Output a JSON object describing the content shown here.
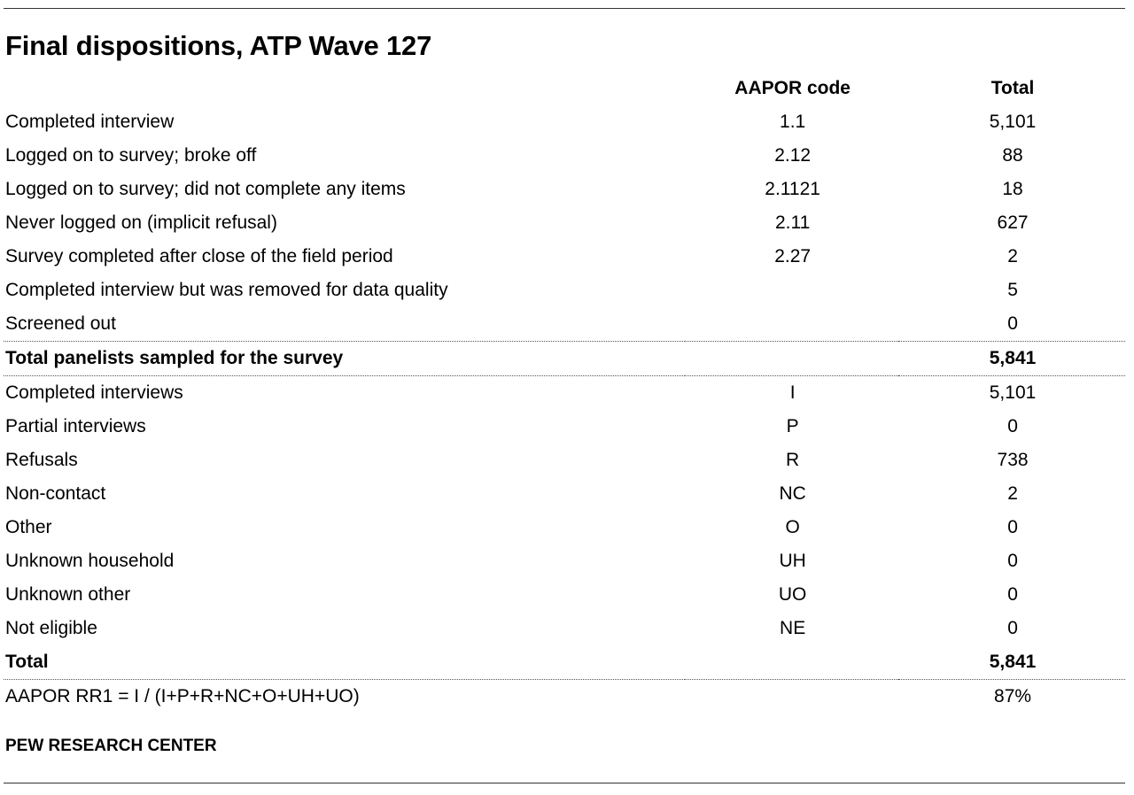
{
  "title": "Final dispositions, ATP Wave 127",
  "table": {
    "headers": {
      "label": "",
      "code": "AAPOR code",
      "total": "Total"
    },
    "rows": [
      {
        "label": "Completed interview",
        "code": "1.1",
        "total": "5,101"
      },
      {
        "label": "Logged on to survey; broke off",
        "code": "2.12",
        "total": "88"
      },
      {
        "label": "Logged on to survey; did not complete any items",
        "code": "2.1121",
        "total": "18"
      },
      {
        "label": "Never logged on (implicit refusal)",
        "code": "2.11",
        "total": "627"
      },
      {
        "label": "Survey completed after close of the field period",
        "code": "2.27",
        "total": "2"
      },
      {
        "label": "Completed interview but was removed for data quality",
        "code": "",
        "total": "5"
      },
      {
        "label": "Screened out",
        "code": "",
        "total": "0"
      },
      {
        "label": "Total panelists sampled for the survey",
        "code": "",
        "total": "5,841"
      },
      {
        "label": "Completed interviews",
        "code": "I",
        "total": "5,101"
      },
      {
        "label": "Partial interviews",
        "code": "P",
        "total": "0"
      },
      {
        "label": "Refusals",
        "code": "R",
        "total": "738"
      },
      {
        "label": "Non-contact",
        "code": "NC",
        "total": "2"
      },
      {
        "label": "Other",
        "code": "O",
        "total": "0"
      },
      {
        "label": "Unknown household",
        "code": "UH",
        "total": "0"
      },
      {
        "label": "Unknown other",
        "code": "UO",
        "total": "0"
      },
      {
        "label": "Not eligible",
        "code": "NE",
        "total": "0"
      },
      {
        "label": "Total",
        "code": "",
        "total": "5,841"
      },
      {
        "label": "AAPOR RR1 = I / (I+P+R+NC+O+UH+UO)",
        "code": "",
        "total": "87%"
      }
    ]
  },
  "source": "PEW RESEARCH CENTER"
}
